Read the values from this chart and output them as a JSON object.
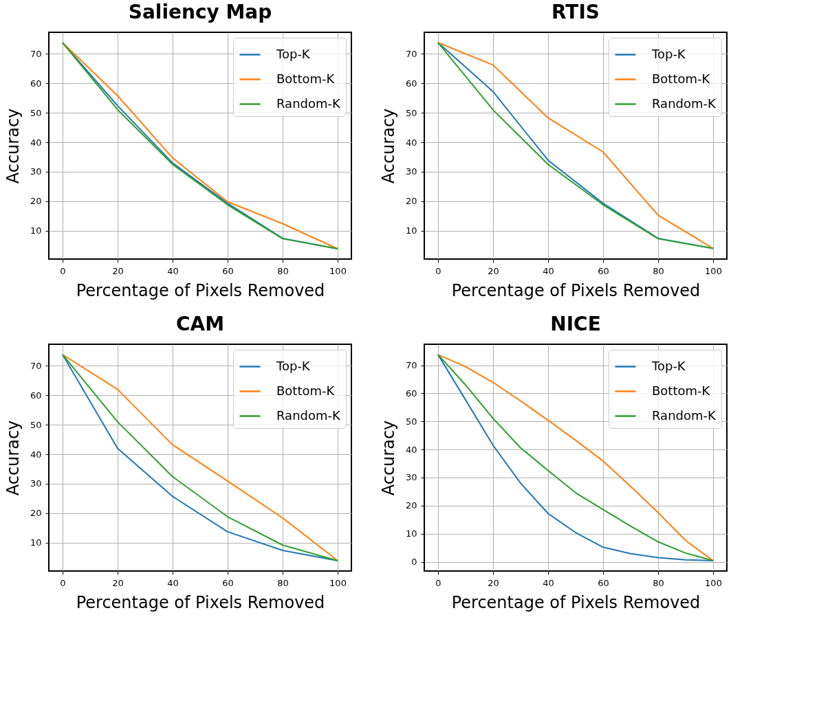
{
  "chart_data": [
    {
      "type": "line",
      "title": "Saliency Map",
      "xlabel": "Percentage of Pixels Removed",
      "ylabel": "Accuracy",
      "x": [
        0,
        20,
        40,
        60,
        80,
        100
      ],
      "xlim": [
        -5,
        105
      ],
      "xticks": [
        0,
        20,
        40,
        60,
        80,
        100
      ],
      "ylim": [
        0.4,
        77.3
      ],
      "yticks": [
        10,
        20,
        30,
        40,
        50,
        60,
        70
      ],
      "grid": true,
      "legend": "top right",
      "series": [
        {
          "name": "Top-K",
          "color": "#1f77b4",
          "values": [
            73.8,
            52.4,
            33.0,
            19.3,
            7.4,
            3.9
          ]
        },
        {
          "name": "Bottom-K",
          "color": "#ff7f0e",
          "values": [
            73.8,
            55.8,
            34.7,
            19.8,
            12.4,
            3.9
          ]
        },
        {
          "name": "Random-K",
          "color": "#2ca02c",
          "values": [
            73.8,
            51.1,
            32.5,
            18.8,
            7.3,
            3.9
          ]
        }
      ]
    },
    {
      "type": "line",
      "title": "RTIS",
      "xlabel": "Percentage of Pixels Removed",
      "ylabel": "Accuracy",
      "x": [
        0,
        20,
        40,
        60,
        80,
        100
      ],
      "xlim": [
        -5,
        105
      ],
      "xticks": [
        0,
        20,
        40,
        60,
        80,
        100
      ],
      "ylim": [
        0.4,
        77.3
      ],
      "yticks": [
        10,
        20,
        30,
        40,
        50,
        60,
        70
      ],
      "grid": true,
      "legend": "top right",
      "series": [
        {
          "name": "Top-K",
          "color": "#1f77b4",
          "values": [
            73.8,
            57.2,
            33.9,
            19.3,
            7.4,
            4.0
          ]
        },
        {
          "name": "Bottom-K",
          "color": "#ff7f0e",
          "values": [
            73.8,
            66.2,
            48.3,
            36.7,
            15.3,
            4.0
          ]
        },
        {
          "name": "Random-K",
          "color": "#2ca02c",
          "values": [
            73.8,
            51.0,
            32.5,
            18.8,
            7.3,
            4.0
          ]
        }
      ]
    },
    {
      "type": "line",
      "title": "CAM",
      "xlabel": "Percentage of Pixels Removed",
      "ylabel": "Accuracy",
      "x": [
        0,
        20,
        40,
        60,
        80,
        100
      ],
      "xlim": [
        -5,
        105
      ],
      "xticks": [
        0,
        20,
        40,
        60,
        80,
        100
      ],
      "ylim": [
        0.4,
        77.3
      ],
      "yticks": [
        10,
        20,
        30,
        40,
        50,
        60,
        70
      ],
      "grid": true,
      "legend": "top right",
      "series": [
        {
          "name": "Top-K",
          "color": "#1f77b4",
          "values": [
            73.8,
            42.0,
            25.7,
            13.7,
            7.4,
            3.9
          ]
        },
        {
          "name": "Bottom-K",
          "color": "#ff7f0e",
          "values": [
            73.8,
            62.0,
            43.2,
            30.9,
            18.4,
            3.9
          ]
        },
        {
          "name": "Random-K",
          "color": "#2ca02c",
          "values": [
            73.8,
            51.0,
            32.4,
            18.8,
            9.2,
            3.9
          ]
        }
      ]
    },
    {
      "type": "line",
      "title": "NICE",
      "xlabel": "Percentage of Pixels Removed",
      "ylabel": "Accuracy",
      "x": [
        0,
        10,
        20,
        30,
        40,
        50,
        60,
        70,
        80,
        90,
        100
      ],
      "xlim": [
        -5,
        105
      ],
      "xticks": [
        0,
        20,
        40,
        60,
        80,
        100
      ],
      "ylim": [
        -3.3,
        77.5
      ],
      "yticks": [
        0,
        10,
        20,
        30,
        40,
        50,
        60,
        70
      ],
      "grid": true,
      "legend": "top right",
      "series": [
        {
          "name": "Top-K",
          "color": "#1f77b4",
          "values": [
            73.8,
            57.7,
            41.5,
            28.0,
            17.2,
            10.4,
            5.2,
            2.9,
            1.5,
            0.7,
            0.4
          ]
        },
        {
          "name": "Bottom-K",
          "color": "#ff7f0e",
          "values": [
            73.8,
            69.5,
            63.9,
            57.3,
            50.4,
            43.3,
            35.9,
            26.9,
            17.5,
            7.6,
            0.4
          ]
        },
        {
          "name": "Random-K",
          "color": "#2ca02c",
          "values": [
            73.8,
            63.0,
            51.1,
            40.6,
            32.5,
            24.6,
            18.6,
            12.7,
            7.1,
            3.1,
            0.4
          ]
        }
      ]
    }
  ]
}
